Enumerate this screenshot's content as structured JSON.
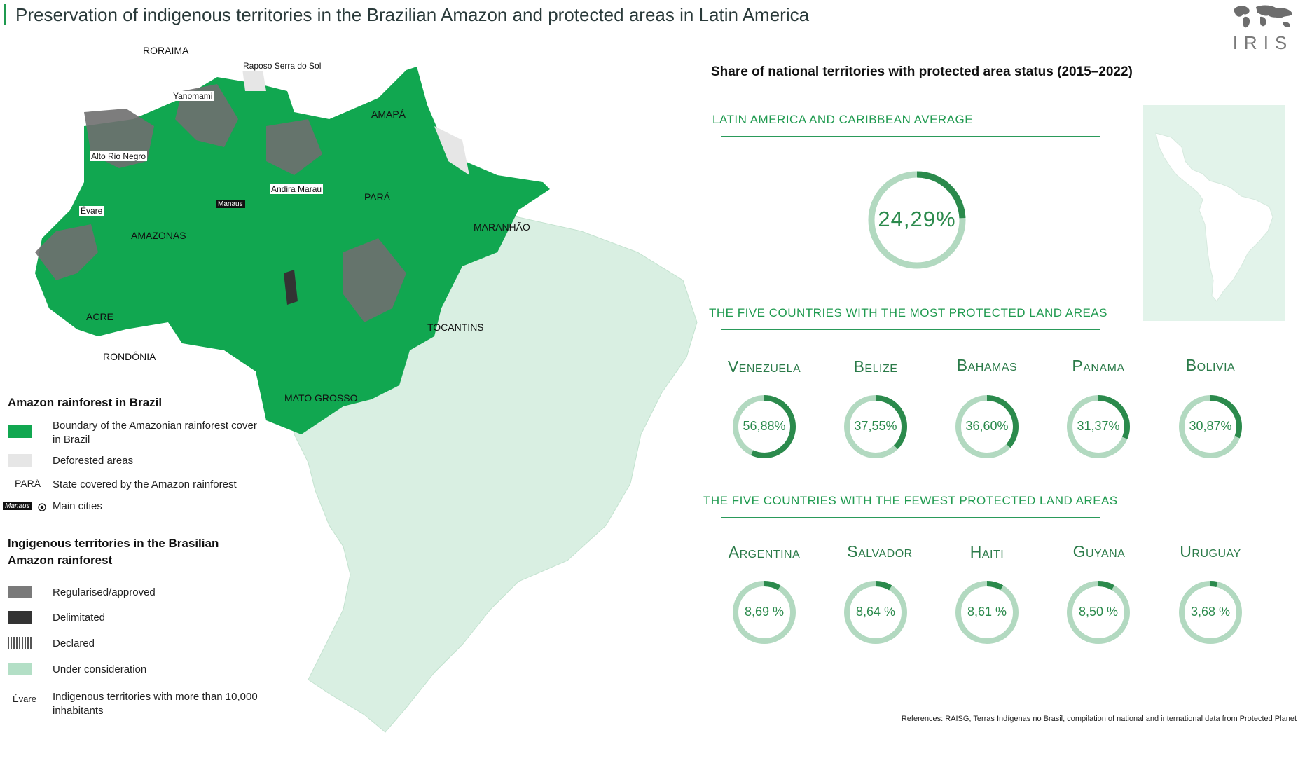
{
  "title": "Preservation of indigenous territories in the Brazilian Amazon and protected areas in Latin America",
  "logo": {
    "text": "IRIS",
    "icon": "world-map-icon"
  },
  "colors": {
    "accent": "#1f9a4f",
    "forest": "#11a750",
    "deforested": "#e6e6e6",
    "brazil_land": "#d9efe2",
    "regularised": "#7a7a7a",
    "delimitated": "#333333",
    "under_consideration": "#b3dfc6",
    "ring_track": "#b2d9c0",
    "ring_value": "#2b8a4c"
  },
  "map": {
    "state_labels": [
      "RORAIMA",
      "AMAPÁ",
      "PARÁ",
      "AMAZONAS",
      "MARANHÃO",
      "ACRE",
      "TOCANTINS",
      "RONDÔNIA",
      "MATO GROSSO"
    ],
    "territory_labels": [
      "Raposo Serra do Sol",
      "Yanomami",
      "Alto Rio Negro",
      "Andira Marau",
      "Évare"
    ],
    "city_labels": [
      "Manaus"
    ]
  },
  "legend": {
    "section1_title": "Amazon rainforest in Brazil",
    "items1": [
      {
        "label": "Boundary of the Amazonian rainforest cover in Brazil"
      },
      {
        "label": "Deforested areas"
      },
      {
        "marker": "PARÁ",
        "label": "State covered by the Amazon rainforest"
      },
      {
        "marker": "Manaus",
        "label": "Main cities"
      }
    ],
    "section2_title": "Ingigenous territories in the Brasilian Amazon rainforest",
    "items2": [
      {
        "label": "Regularised/approved"
      },
      {
        "label": "Delimitated"
      },
      {
        "label": "Declared"
      },
      {
        "label": "Under consideration"
      },
      {
        "marker": "Évare",
        "label": "Indigenous territories with more than 10,000 inhabitants"
      }
    ]
  },
  "panel": {
    "title": "Share of national territories with protected area status (2015–2022)",
    "average": {
      "heading": "LATIN AMERICA AND CARIBBEAN AVERAGE",
      "label": "24,29%",
      "value": 24.29
    },
    "most": {
      "heading": "THE FIVE COUNTRIES WITH THE MOST PROTECTED LAND AREAS",
      "countries": [
        {
          "name": "Venezuela",
          "label": "56,88%",
          "value": 56.88
        },
        {
          "name": "Belize",
          "label": "37,55%",
          "value": 37.55
        },
        {
          "name": "Bahamas",
          "label": "36,60%",
          "value": 36.6
        },
        {
          "name": "Panama",
          "label": "31,37%",
          "value": 31.37
        },
        {
          "name": "Bolivia",
          "label": "30,87%",
          "value": 30.87
        }
      ]
    },
    "fewest": {
      "heading": "THE FIVE COUNTRIES WITH THE FEWEST PROTECTED LAND AREAS",
      "countries": [
        {
          "name": "Argentina",
          "label": "8,69 %",
          "value": 8.69
        },
        {
          "name": "Salvador",
          "label": "8,64 %",
          "value": 8.64
        },
        {
          "name": "Haiti",
          "label": "8,61 %",
          "value": 8.61
        },
        {
          "name": "Guyana",
          "label": "8,50 %",
          "value": 8.5
        },
        {
          "name": "Uruguay",
          "label": "3,68 %",
          "value": 3.68
        }
      ]
    }
  },
  "references": "References: RAISG, Terras Indígenas no Brasil, compilation of national and international data from Protected Planet"
}
